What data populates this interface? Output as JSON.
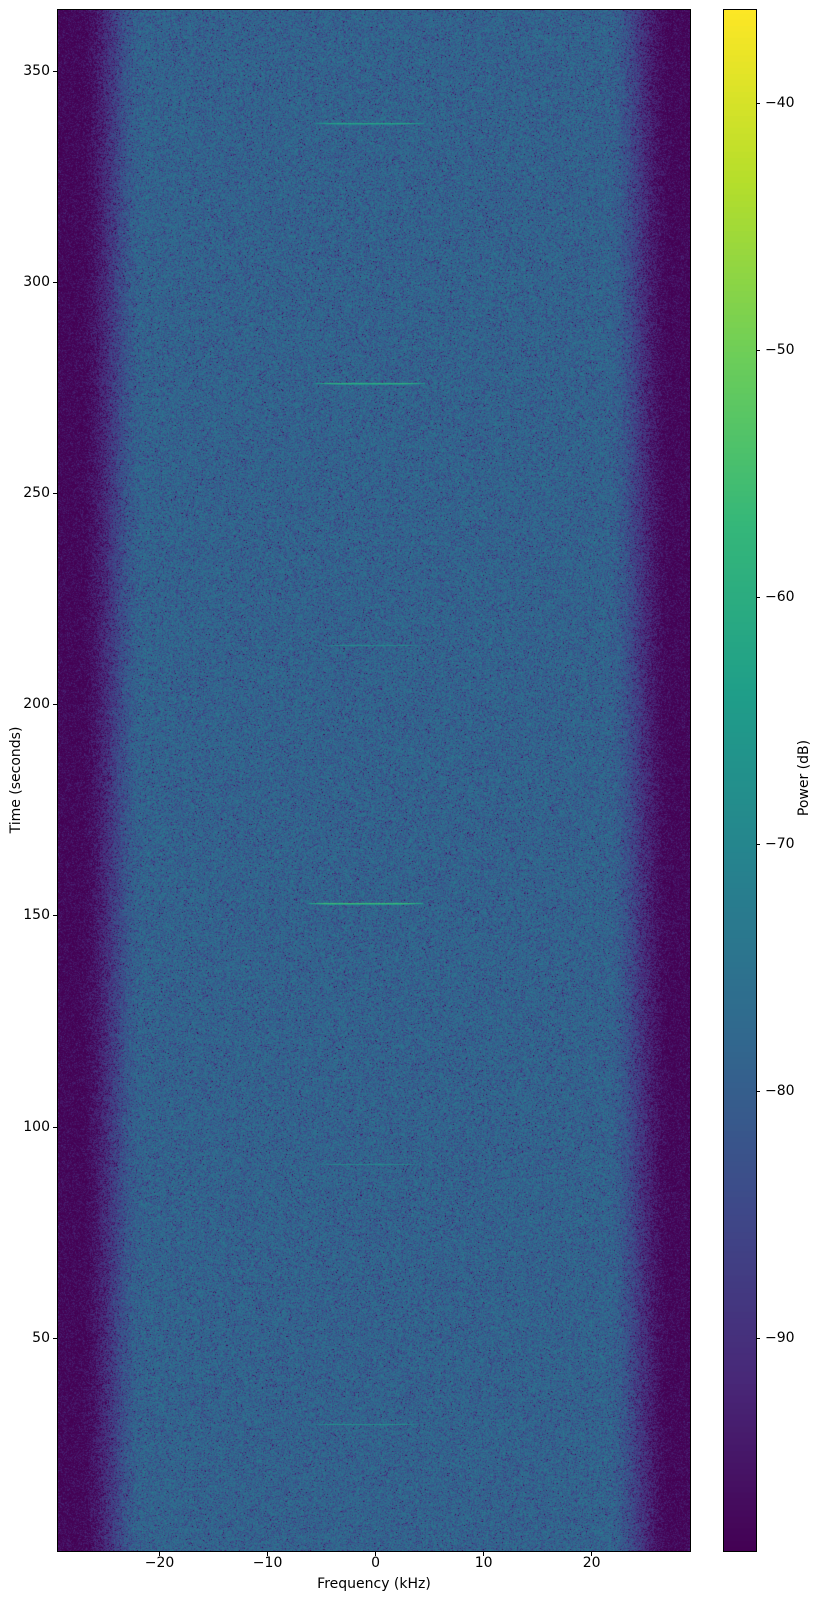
{
  "chart_data": {
    "type": "heatmap",
    "subtype": "spectrogram",
    "title": "",
    "xlabel": "Frequency (kHz)",
    "ylabel": "Time (seconds)",
    "colorbar_label": "Power (dB)",
    "colormap": "viridis",
    "legend": "none",
    "grid": false,
    "x_range_khz": [
      -29.4,
      29.1
    ],
    "y_range_s": [
      -0.4,
      364.5
    ],
    "color_range_db": [
      -98.6,
      -36.2
    ],
    "x_ticks_khz": [
      -20,
      -10,
      0,
      10,
      20
    ],
    "y_ticks_s": [
      50,
      100,
      150,
      200,
      250,
      300,
      350
    ],
    "colorbar_ticks_db": [
      -40,
      -50,
      -60,
      -70,
      -80,
      -90
    ],
    "noise_background": {
      "passband_power_db": -78.5,
      "edge_power_db": -98.0,
      "rolloff_start_khz": 21.5,
      "rolloff_end_khz": 27.5
    },
    "bursts": [
      {
        "time_s": 337.7,
        "f_min_khz": -5.6,
        "f_max_khz": 4.5,
        "power_db": -62
      },
      {
        "time_s": 276.2,
        "f_min_khz": -5.6,
        "f_max_khz": 4.6,
        "power_db": -59
      },
      {
        "time_s": 214.1,
        "f_min_khz": -5.0,
        "f_max_khz": 4.3,
        "power_db": -69
      },
      {
        "time_s": 153.0,
        "f_min_khz": -6.2,
        "f_max_khz": 4.4,
        "power_db": -56
      },
      {
        "time_s": 91.2,
        "f_min_khz": -5.4,
        "f_max_khz": 4.2,
        "power_db": -69
      },
      {
        "time_s": 29.7,
        "f_min_khz": -5.8,
        "f_max_khz": 4.0,
        "power_db": -67
      }
    ],
    "viridis_stops": [
      "#440154",
      "#482878",
      "#3e4989",
      "#31688e",
      "#26828e",
      "#1f9e89",
      "#35b779",
      "#6ece58",
      "#b5de2b",
      "#fde725"
    ]
  }
}
